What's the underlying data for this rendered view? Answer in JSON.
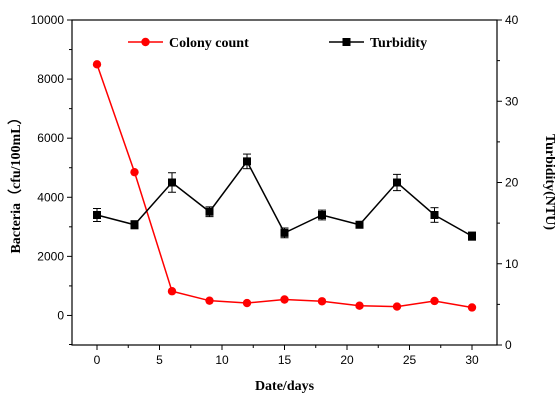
{
  "chart_data": {
    "type": "line",
    "xlabel": "Date/days",
    "ylabel": "Bacteria（cfu/100mL）",
    "y2label": "Turbidity(NTU)",
    "xlim": [
      -2,
      32
    ],
    "ylim": [
      -1000,
      10000
    ],
    "y2lim": [
      0,
      40
    ],
    "xticks": [
      0,
      5,
      10,
      15,
      20,
      25,
      30
    ],
    "yticks": [
      0,
      2000,
      4000,
      6000,
      8000,
      10000
    ],
    "y2ticks": [
      0,
      10,
      20,
      30,
      40
    ],
    "legend_position": "top",
    "grid": false,
    "series": [
      {
        "name": "Colony count",
        "axis": "left",
        "color": "#ff0000",
        "marker": "circle",
        "x": [
          0,
          3,
          6,
          9,
          12,
          15,
          18,
          21,
          24,
          27,
          30
        ],
        "y": [
          8500,
          4850,
          820,
          500,
          420,
          540,
          480,
          330,
          300,
          490,
          270
        ]
      },
      {
        "name": "Turbidity",
        "axis": "right",
        "color": "#000000",
        "marker": "square",
        "x": [
          0,
          3,
          6,
          9,
          12,
          15,
          18,
          21,
          24,
          27,
          30
        ],
        "y": [
          16.0,
          14.8,
          20.0,
          16.4,
          22.6,
          13.8,
          16.0,
          14.8,
          20.0,
          16.0,
          13.4
        ],
        "error": [
          0.8,
          0.5,
          1.2,
          0.6,
          0.9,
          0.6,
          0.6,
          0.4,
          1.0,
          0.9,
          0.5
        ]
      }
    ]
  }
}
